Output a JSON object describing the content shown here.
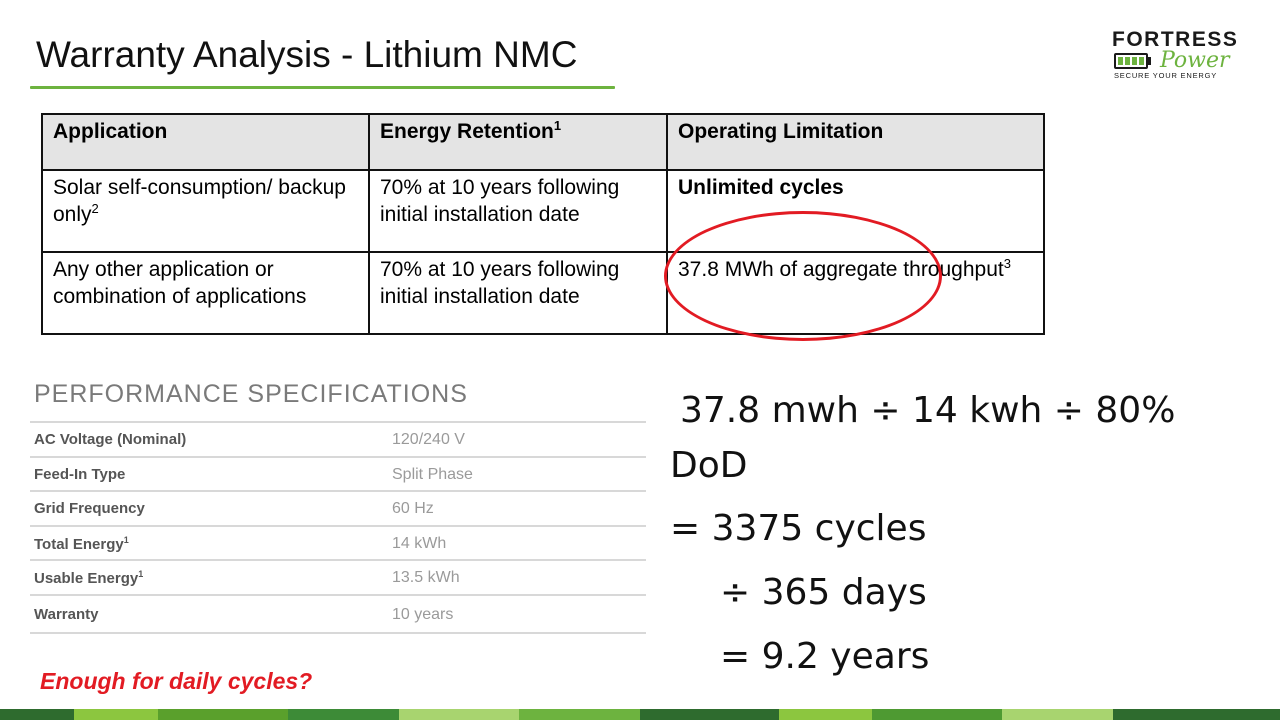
{
  "slide": {
    "title": "Warranty Analysis - Lithium NMC"
  },
  "logo": {
    "top": "FORTRESS",
    "script": "Power",
    "tagline": "SECURE YOUR ENERGY"
  },
  "warranty_table": {
    "headers": [
      "Application",
      "Energy Retention",
      "Operating Limitation"
    ],
    "header_sup": [
      "",
      "1",
      ""
    ],
    "rows": [
      {
        "application": "Solar self-consumption/ backup only",
        "application_sup": "2",
        "retention": "70% at 10 years following initial installation date",
        "limitation": "Unlimited cycles",
        "limitation_sup": ""
      },
      {
        "application": "Any other application or combination of applications",
        "application_sup": "",
        "retention": "70% at 10 years following initial installation date",
        "limitation": "37.8 MWh of aggregate throughput",
        "limitation_sup": "3"
      }
    ]
  },
  "performance": {
    "heading": "PERFORMANCE SPECIFICATIONS",
    "rows": [
      {
        "label": "AC Voltage (Nominal)",
        "label_sup": "",
        "value": "120/240 V"
      },
      {
        "label": "Feed-In Type",
        "label_sup": "",
        "value": "Split Phase"
      },
      {
        "label": "Grid Frequency",
        "label_sup": "",
        "value": "60 Hz"
      },
      {
        "label": "Total Energy",
        "label_sup": "1",
        "value": "14 kWh"
      },
      {
        "label": "Usable Energy",
        "label_sup": "1",
        "value": "13.5 kWh"
      },
      {
        "label": "Warranty",
        "label_sup": "",
        "value": "10 years"
      }
    ]
  },
  "calculation": {
    "line1": "37.8 mwh ÷ 14 kwh ÷ 80%",
    "line2": "DoD",
    "line3": "= 3375 cycles",
    "line4": "÷ 365 days",
    "line5": "= 9.2 years"
  },
  "question": "Enough for daily cycles?",
  "colors": {
    "accent_green": "#6db33f",
    "annotation_red": "#e21b23",
    "footer": [
      "#2e6b2e",
      "#8cc63f",
      "#5aa02c",
      "#3d8b37",
      "#a8d46f",
      "#6db33f",
      "#2e6b2e",
      "#8cc63f",
      "#4e9a32",
      "#a8d46f",
      "#2e6b2e"
    ]
  }
}
